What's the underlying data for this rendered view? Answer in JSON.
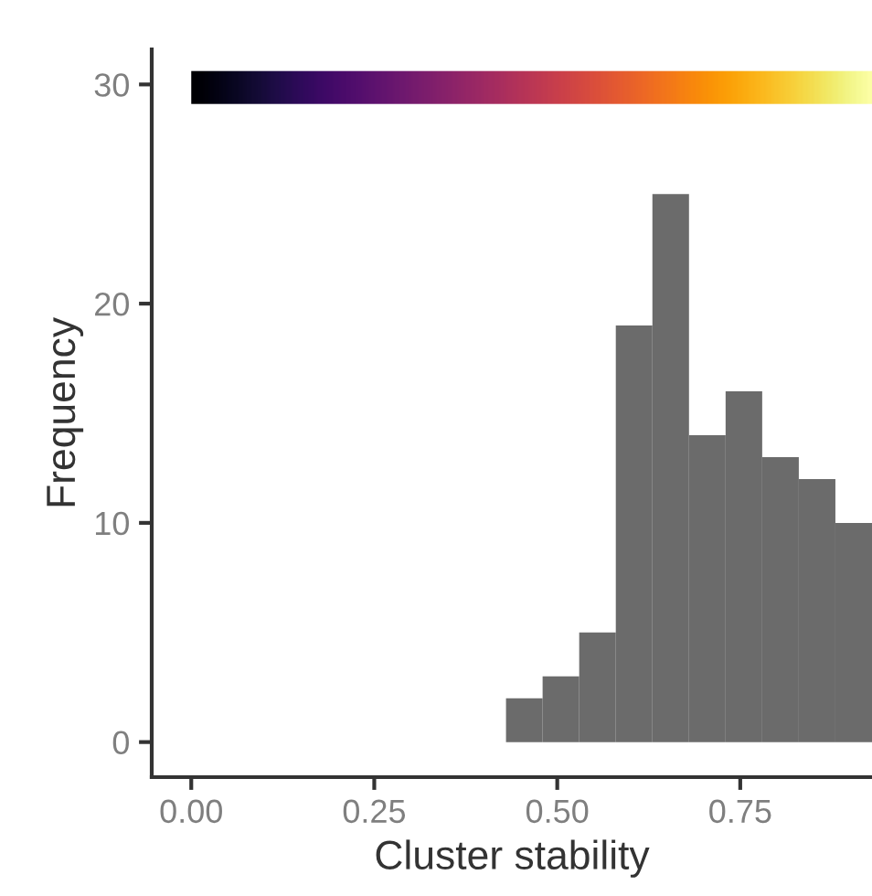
{
  "chart_data": {
    "type": "histogram",
    "xlabel": "Cluster stability",
    "ylabel": "Frequency",
    "bins": [
      0.43,
      0.48,
      0.53,
      0.58,
      0.63,
      0.68,
      0.73,
      0.78,
      0.83,
      0.88,
      0.93
    ],
    "values": [
      2,
      3,
      5,
      19,
      25,
      14,
      16,
      13,
      12,
      10
    ],
    "color": "#6b6b6b",
    "xlim": [
      -0.054,
      0.93
    ],
    "xticks": [
      {
        "value": 0,
        "label": "0.00"
      },
      0.25,
      {
        "value": 0.5,
        "label": "0.50"
      },
      0.75
    ],
    "ylim": [
      -1.6,
      31.6
    ],
    "yticks": [
      0,
      10,
      20,
      30
    ],
    "grid": false
  }
}
